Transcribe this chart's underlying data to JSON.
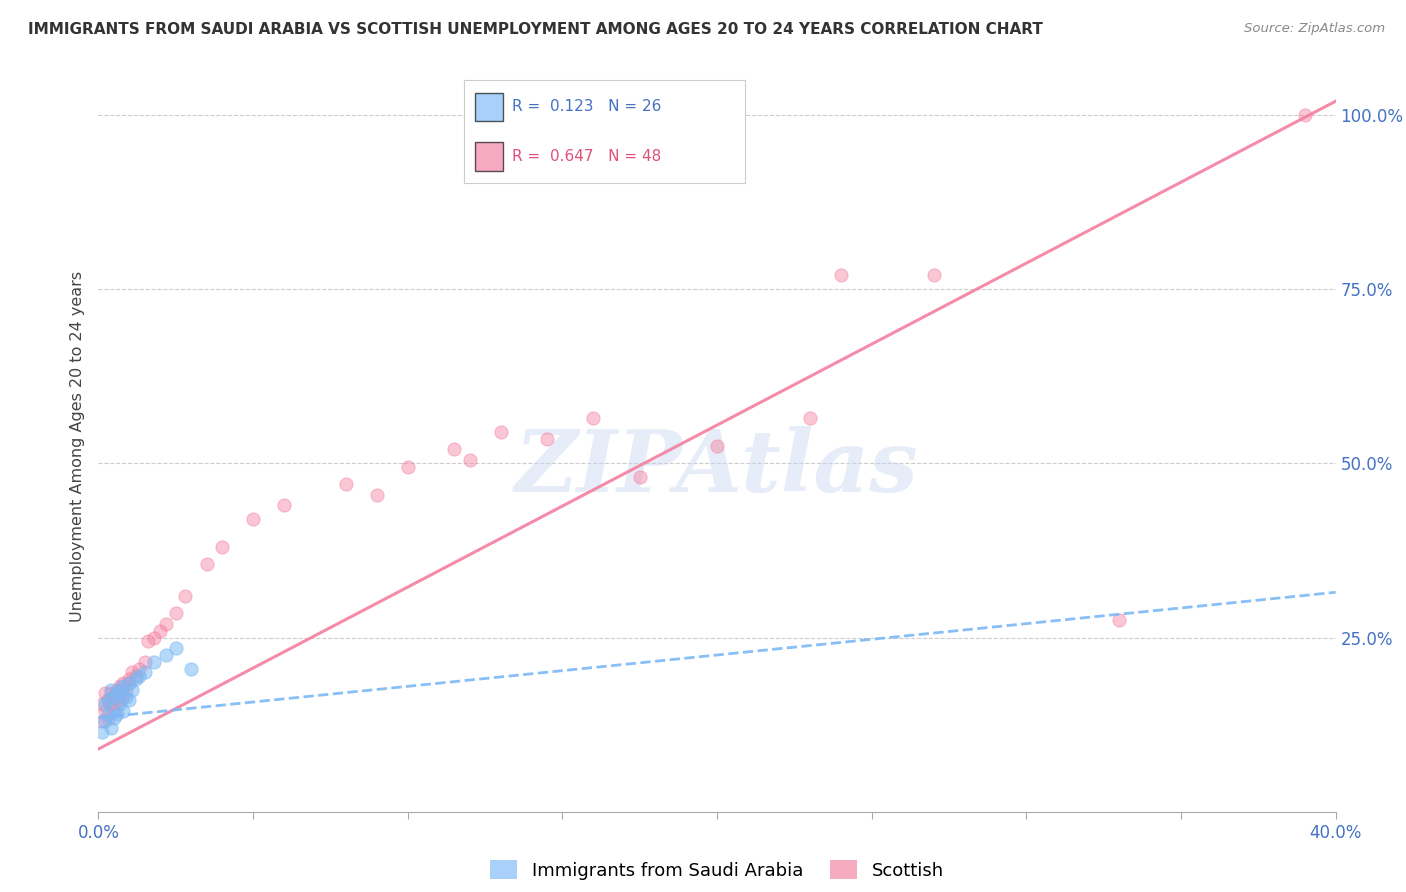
{
  "title": "IMMIGRANTS FROM SAUDI ARABIA VS SCOTTISH UNEMPLOYMENT AMONG AGES 20 TO 24 YEARS CORRELATION CHART",
  "source": "Source: ZipAtlas.com",
  "ylabel": "Unemployment Among Ages 20 to 24 years",
  "xlim": [
    0.0,
    0.4
  ],
  "ylim": [
    0.0,
    1.05
  ],
  "watermark": "ZIPAtlas",
  "blue_scatter_x": [
    0.001,
    0.002,
    0.002,
    0.003,
    0.003,
    0.004,
    0.004,
    0.005,
    0.005,
    0.006,
    0.006,
    0.007,
    0.007,
    0.008,
    0.008,
    0.009,
    0.01,
    0.01,
    0.011,
    0.012,
    0.013,
    0.015,
    0.018,
    0.022,
    0.025,
    0.03
  ],
  "blue_scatter_y": [
    0.115,
    0.13,
    0.155,
    0.14,
    0.16,
    0.12,
    0.175,
    0.135,
    0.165,
    0.14,
    0.17,
    0.155,
    0.175,
    0.145,
    0.18,
    0.165,
    0.185,
    0.16,
    0.175,
    0.19,
    0.195,
    0.2,
    0.215,
    0.225,
    0.235,
    0.205
  ],
  "pink_scatter_x": [
    0.001,
    0.001,
    0.002,
    0.002,
    0.003,
    0.003,
    0.004,
    0.004,
    0.005,
    0.005,
    0.006,
    0.006,
    0.007,
    0.007,
    0.008,
    0.008,
    0.009,
    0.01,
    0.01,
    0.011,
    0.012,
    0.013,
    0.015,
    0.016,
    0.018,
    0.02,
    0.022,
    0.025,
    0.028,
    0.035,
    0.04,
    0.05,
    0.06,
    0.08,
    0.09,
    0.1,
    0.115,
    0.12,
    0.13,
    0.145,
    0.16,
    0.175,
    0.2,
    0.23,
    0.24,
    0.27,
    0.33,
    0.39
  ],
  "pink_scatter_y": [
    0.13,
    0.155,
    0.145,
    0.17,
    0.135,
    0.16,
    0.155,
    0.17,
    0.145,
    0.165,
    0.155,
    0.175,
    0.16,
    0.18,
    0.165,
    0.185,
    0.175,
    0.185,
    0.19,
    0.2,
    0.195,
    0.205,
    0.215,
    0.245,
    0.25,
    0.26,
    0.27,
    0.285,
    0.31,
    0.355,
    0.38,
    0.42,
    0.44,
    0.47,
    0.455,
    0.495,
    0.52,
    0.505,
    0.545,
    0.535,
    0.565,
    0.48,
    0.525,
    0.565,
    0.77,
    0.77,
    0.275,
    1.0
  ],
  "blue_line_x": [
    0.0,
    0.4
  ],
  "blue_line_y": [
    0.135,
    0.315
  ],
  "pink_line_x": [
    0.0,
    0.4
  ],
  "pink_line_y": [
    0.09,
    1.02
  ],
  "grid_color": "#cccccc",
  "bg_color": "#ffffff",
  "scatter_size": 90,
  "blue_color": "#7ab8f5",
  "pink_color": "#f47fa0",
  "blue_scatter_alpha": 0.55,
  "pink_scatter_alpha": 0.45,
  "blue_line_color": "#7ab8f5",
  "pink_line_color": "#f47fa0"
}
